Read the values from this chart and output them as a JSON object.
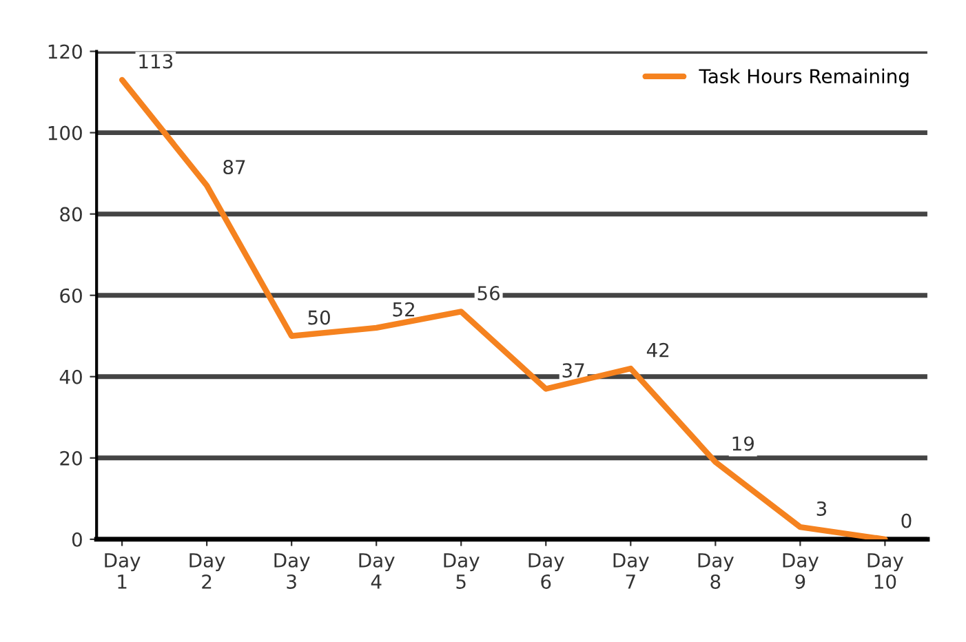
{
  "chart_data": {
    "type": "line",
    "categories": [
      "Day\n1",
      "Day\n2",
      "Day\n3",
      "Day\n4",
      "Day\n5",
      "Day\n6",
      "Day\n7",
      "Day\n8",
      "Day\n9",
      "Day\n10"
    ],
    "series": [
      {
        "name": "Task Hours Remaining",
        "color": "#f5821f",
        "values": [
          113,
          87,
          50,
          52,
          56,
          37,
          42,
          19,
          3,
          0
        ]
      }
    ],
    "ylim": [
      0,
      120
    ],
    "yticks": [
      0,
      20,
      40,
      60,
      80,
      100,
      120
    ],
    "grid": "y",
    "legend": "top right",
    "data_labels": true,
    "marker": "none",
    "line_style": "solid"
  }
}
